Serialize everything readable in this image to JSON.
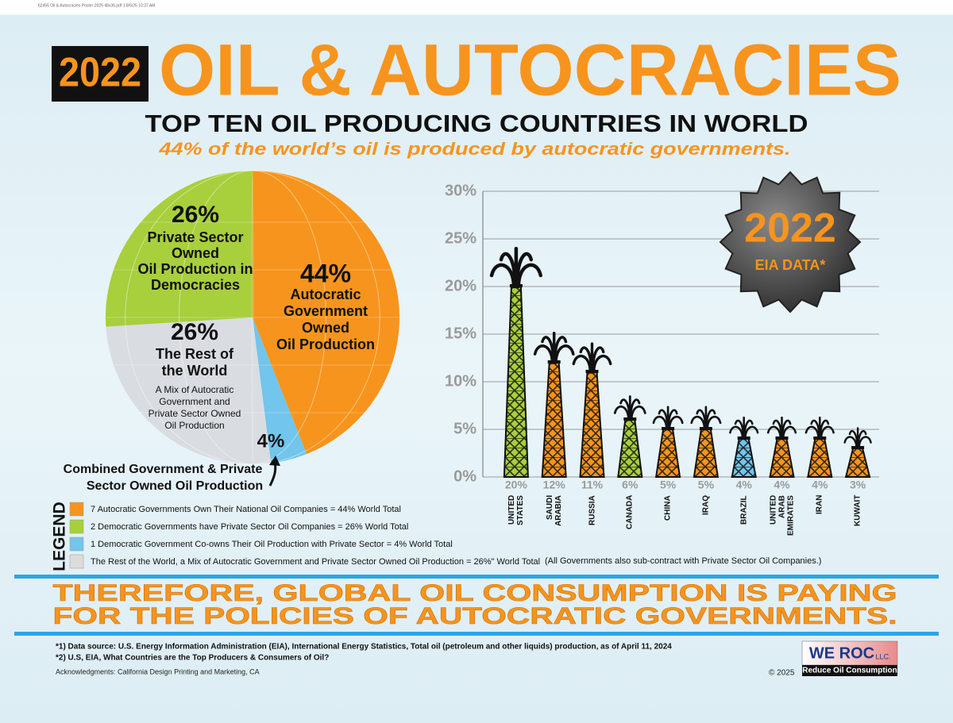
{
  "print_info": "62455 Oil & Autocracies Poster-2025 48x36.pdf   1   8/5/25   10:37 AM",
  "header": {
    "year_badge": "2022",
    "title": "OIL & AUTOCRACIES",
    "subtitle": "TOP TEN OIL PRODUCING COUNTRIES IN WORLD",
    "tagline": "44% of the world’s oil is produced by autocratic governments."
  },
  "chart_data": [
    {
      "type": "pie",
      "values": [
        44,
        4,
        26,
        26
      ],
      "value_labels": [
        "44%",
        "4%",
        "26%",
        "26%"
      ],
      "colors": [
        "#f7941d",
        "#72c5ec",
        "#d9dde2",
        "#a8cf3c"
      ],
      "labels": [
        [
          "Autocratic",
          "Government",
          "Owned",
          "Oil Production"
        ],
        [
          "Combined Government & Private",
          "Sector Owned Oil Production"
        ],
        [
          "The Rest of",
          "the World"
        ],
        [
          "Private Sector",
          "Owned",
          "Oil Production in",
          "Democracies"
        ]
      ],
      "rest_note": [
        "A Mix of Autocratic",
        "Government and",
        "Private Sector Owned",
        "Oil Production"
      ]
    },
    {
      "type": "bar",
      "categories": [
        "UNITED STATES",
        "SAUDI ARABIA",
        "RUSSIA",
        "CANADA",
        "CHINA",
        "IRAQ",
        "BRAZIL",
        "UNITED ARAB EMIRATES",
        "IRAN",
        "KUWAIT"
      ],
      "values": [
        20,
        12,
        11,
        6,
        5,
        5,
        4,
        4,
        4,
        3
      ],
      "value_labels": [
        "20%",
        "12%",
        "11%",
        "6%",
        "5%",
        "5%",
        "4%",
        "4%",
        "4%",
        "3%"
      ],
      "colors": [
        "#a8cf3c",
        "#f7941d",
        "#f7941d",
        "#a8cf3c",
        "#f7941d",
        "#f7941d",
        "#72c5ec",
        "#f7941d",
        "#f7941d",
        "#f7941d"
      ],
      "ylim": [
        0,
        30
      ],
      "yticks": [
        {
          "value": 0,
          "label": "0%"
        },
        {
          "value": 5,
          "label": "5%"
        },
        {
          "value": 10,
          "label": "10%"
        },
        {
          "value": 15,
          "label": "15%"
        },
        {
          "value": 20,
          "label": "20%"
        },
        {
          "value": 25,
          "label": "25%"
        },
        {
          "value": 30,
          "label": "30%"
        }
      ],
      "grid": true,
      "badge": {
        "year": "2022",
        "text": "EIA DATA*"
      }
    }
  ],
  "legend": {
    "title": "LEGEND",
    "items": [
      {
        "color": "#f7941d",
        "text": "7 Autocratic Governments Own Their National Oil Companies = 44% World Total"
      },
      {
        "color": "#a8cf3c",
        "text": "2 Democratic Governments have Private Sector Oil Companies = 26% World Total"
      },
      {
        "color": "#72c5ec",
        "text": "1 Democratic Government Co-owns Their Oil Production with Private Sector = 4% World Total"
      },
      {
        "color": "#dcdcdc",
        "text": "The Rest of the World, a Mix of Autocratic Government and Private Sector Owned Oil Production = 26%\" World Total"
      }
    ],
    "note": "(All Governments also sub-contract with Private Sector Oil Companies.)"
  },
  "conclusion": [
    "THEREFORE, GLOBAL OIL CONSUMPTION IS PAYING",
    "FOR THE POLICIES OF AUTOCRATIC GOVERNMENTS."
  ],
  "footer": {
    "notes": [
      "*1) Data source: U.S. Energy Information Administration (EIA), International Energy Statistics, Total oil (petroleum and other liquids) production, as of April 11, 2024",
      "*2) U.S, EIA, What Countries are the Top Producers & Consumers of Oil?"
    ],
    "acknowledgments": "Acknowledgments: California Design Printing and Marketing, CA",
    "copyright": "© 2025",
    "logo": {
      "name": "WE ROC",
      "suffix": "LLC.",
      "tagline": "Reduce Oil Consumption"
    }
  }
}
